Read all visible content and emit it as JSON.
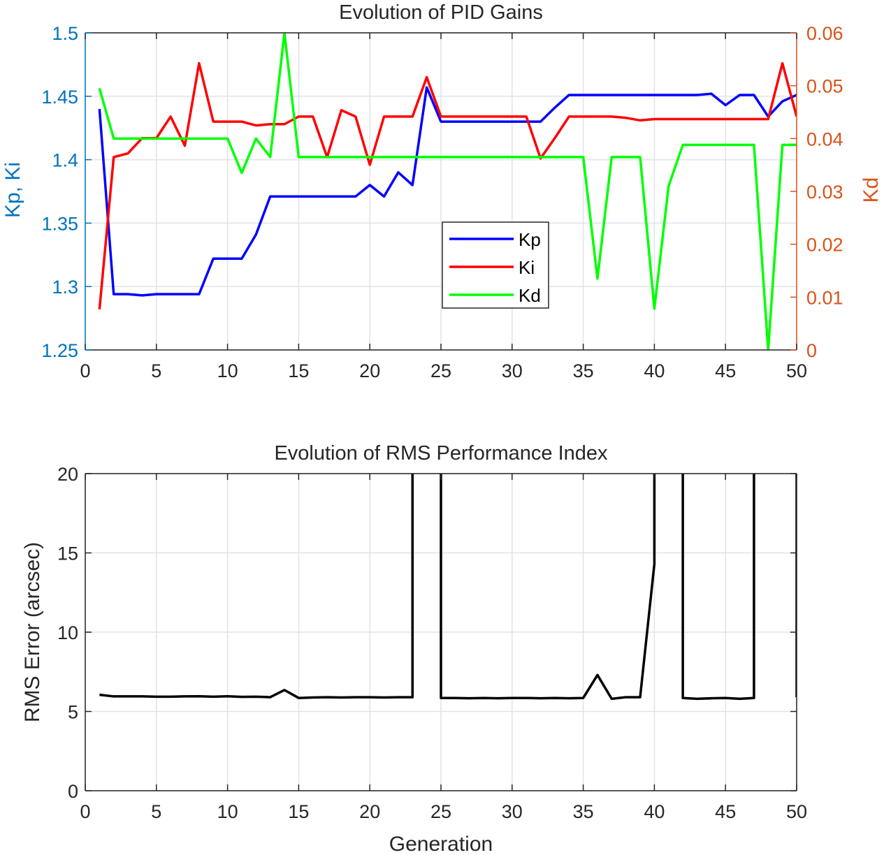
{
  "chart_data": [
    {
      "type": "line",
      "title": "Evolution of PID Gains",
      "xlabel": "",
      "ylabel": "Kp, Ki",
      "ylabel_right": "Kd",
      "xlim": [
        0,
        50
      ],
      "ylim": [
        1.25,
        1.5
      ],
      "ylim_right": [
        0,
        0.06
      ],
      "x_ticks": [
        0,
        5,
        10,
        15,
        20,
        25,
        30,
        35,
        40,
        45,
        50
      ],
      "y_ticks": [
        "1.25",
        "1.3",
        "1.35",
        "1.4",
        "1.45",
        "1.5"
      ],
      "y_ticks_right": [
        "0",
        "0.01",
        "0.02",
        "0.03",
        "0.04",
        "0.05",
        "0.06"
      ],
      "grid": true,
      "legend_position": "center",
      "axis_colors": {
        "left": "#0072BD",
        "right": "#D95319"
      },
      "x": [
        1,
        2,
        3,
        4,
        5,
        6,
        7,
        8,
        9,
        10,
        11,
        12,
        13,
        14,
        15,
        16,
        17,
        18,
        19,
        20,
        21,
        22,
        23,
        24,
        25,
        26,
        27,
        28,
        29,
        30,
        31,
        32,
        33,
        34,
        35,
        36,
        37,
        38,
        39,
        40,
        41,
        42,
        43,
        44,
        45,
        46,
        47,
        48,
        49,
        50
      ],
      "series": [
        {
          "name": "Kp",
          "axis": "left",
          "color": "#0000FF",
          "values": [
            1.44,
            1.294,
            1.294,
            1.293,
            1.294,
            1.294,
            1.294,
            1.294,
            1.322,
            1.322,
            1.322,
            1.341,
            1.371,
            1.371,
            1.371,
            1.371,
            1.371,
            1.371,
            1.371,
            1.38,
            1.371,
            1.39,
            1.38,
            1.457,
            1.43,
            1.43,
            1.43,
            1.43,
            1.43,
            1.43,
            1.43,
            1.43,
            1.441,
            1.451,
            1.451,
            1.451,
            1.451,
            1.451,
            1.451,
            1.451,
            1.451,
            1.451,
            1.451,
            1.452,
            1.443,
            1.451,
            1.451,
            1.434,
            1.446,
            1.451
          ]
        },
        {
          "name": "Ki",
          "axis": "left",
          "color": "#FF0000",
          "values": [
            1.282,
            1.402,
            1.405,
            1.417,
            1.417,
            1.434,
            1.411,
            1.476,
            1.43,
            1.43,
            1.43,
            1.427,
            1.428,
            1.428,
            1.434,
            1.434,
            1.402,
            1.439,
            1.434,
            1.396,
            1.434,
            1.434,
            1.434,
            1.465,
            1.434,
            1.434,
            1.434,
            1.434,
            1.434,
            1.434,
            1.434,
            1.401,
            1.417,
            1.434,
            1.434,
            1.434,
            1.434,
            1.433,
            1.431,
            1.432,
            1.432,
            1.432,
            1.432,
            1.432,
            1.432,
            1.432,
            1.432,
            1.432,
            1.476,
            1.434
          ]
        },
        {
          "name": "Kd",
          "axis": "right",
          "color": "#00FF00",
          "values": [
            0.0495,
            0.04,
            0.04,
            0.04,
            0.04,
            0.04,
            0.04,
            0.04,
            0.04,
            0.04,
            0.0335,
            0.04,
            0.0365,
            0.06,
            0.0365,
            0.0365,
            0.0365,
            0.0365,
            0.0365,
            0.0365,
            0.0365,
            0.0365,
            0.0365,
            0.0365,
            0.0365,
            0.0365,
            0.0365,
            0.0365,
            0.0365,
            0.0365,
            0.0365,
            0.0365,
            0.0365,
            0.0365,
            0.0365,
            0.0135,
            0.0365,
            0.0365,
            0.0365,
            0.0078,
            0.031,
            0.0388,
            0.0388,
            0.0388,
            0.0388,
            0.0388,
            0.0388,
            0.0,
            0.0388,
            0.0388
          ]
        }
      ]
    },
    {
      "type": "line",
      "title": "Evolution of RMS Performance Index",
      "xlabel": "Generation",
      "ylabel": "RMS Error (arcsec)",
      "xlim": [
        0,
        50
      ],
      "ylim": [
        0,
        20
      ],
      "x_ticks": [
        0,
        5,
        10,
        15,
        20,
        25,
        30,
        35,
        40,
        45,
        50
      ],
      "y_ticks": [
        "0",
        "5",
        "10",
        "15",
        "20"
      ],
      "grid": true,
      "series": [
        {
          "color": "#000000",
          "x": [
            1,
            2,
            3,
            4,
            5,
            6,
            7,
            8,
            9,
            10,
            11,
            12,
            13,
            14,
            15,
            16,
            17,
            18,
            19,
            20,
            21,
            22,
            23,
            23,
            25,
            25,
            26,
            27,
            28,
            29,
            30,
            31,
            32,
            33,
            34,
            35,
            36,
            37,
            38,
            39,
            40,
            40,
            42,
            42,
            43,
            44,
            45,
            46,
            47,
            47,
            50,
            50
          ],
          "values": [
            6.05,
            5.95,
            5.95,
            5.95,
            5.93,
            5.93,
            5.95,
            5.96,
            5.93,
            5.96,
            5.92,
            5.93,
            5.9,
            6.35,
            5.85,
            5.88,
            5.9,
            5.88,
            5.9,
            5.9,
            5.88,
            5.9,
            5.9,
            25,
            25,
            5.85,
            5.85,
            5.83,
            5.85,
            5.83,
            5.85,
            5.85,
            5.83,
            5.85,
            5.83,
            5.85,
            7.3,
            5.8,
            5.9,
            5.9,
            14.3,
            25,
            25,
            5.85,
            5.8,
            5.83,
            5.85,
            5.8,
            5.85,
            25,
            25,
            5.9
          ]
        }
      ]
    }
  ]
}
